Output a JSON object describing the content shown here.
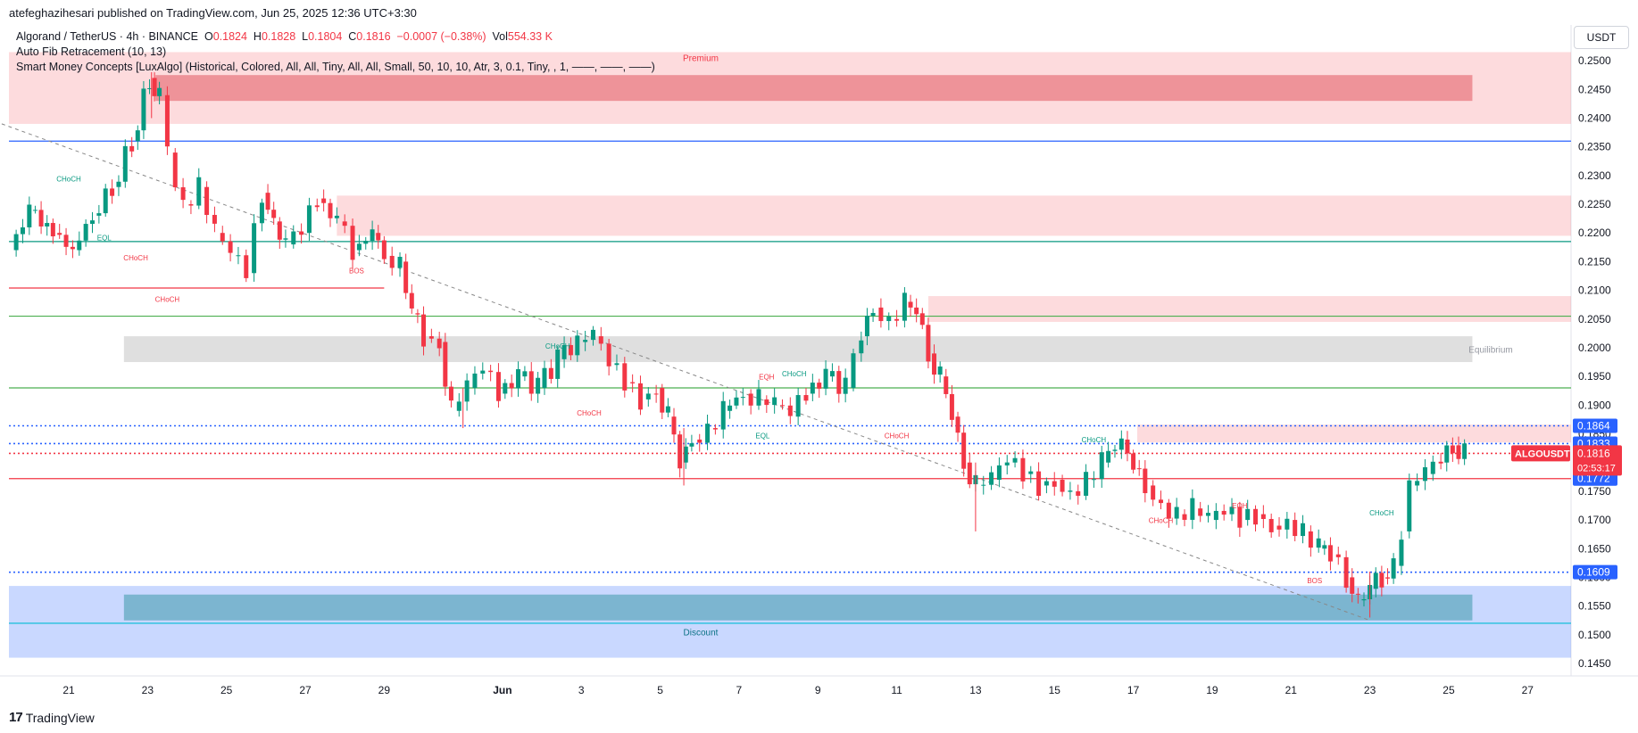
{
  "header": {
    "publish_text": "atefeghazihesari published on TradingView.com, Jun 25, 2025 12:36 UTC+3:30"
  },
  "legend": {
    "symbol": "Algorand / TetherUS · 4h · BINANCE",
    "o_label": "O",
    "o_value": "0.1824",
    "h_label": "H",
    "h_value": "0.1828",
    "l_label": "L",
    "l_value": "0.1804",
    "c_label": "C",
    "c_value": "0.1816",
    "change": "−0.0007 (−0.38%)",
    "vol_label": "Vol",
    "vol_value": "554.33 K",
    "indicator1": "Auto Fib Retracement (10, 13)",
    "indicator2": "Smart Money Concepts [LuxAlgo] (Historical, Colored, All, All, Tiny, All, All, Small, 50, 10, 10, Atr, 3, 0.1, Tiny, , 1, ——, ——, ——)"
  },
  "axis": {
    "currency": "USDT"
  },
  "footer": {
    "brand": "TradingView"
  },
  "colors": {
    "up": "#089981",
    "down": "#f23645",
    "blue": "#2962ff",
    "premium_zone": "#f7c1c5",
    "discount_zone": "#b2c4f2",
    "equilibrium_zone": "#d9d9d9"
  },
  "chart_data": {
    "type": "candlestick",
    "title": "Algorand / TetherUS · 4h · BINANCE",
    "ylim": [
      0.145,
      0.2525
    ],
    "y_ticks": [
      "0.2500",
      "0.2450",
      "0.2400",
      "0.2350",
      "0.2300",
      "0.2250",
      "0.2200",
      "0.2150",
      "0.2100",
      "0.2050",
      "0.2000",
      "0.1950",
      "0.1900",
      "0.1850",
      "0.1800",
      "0.1750",
      "0.1700",
      "0.1650",
      "0.1600",
      "0.1550",
      "0.1500",
      "0.1450"
    ],
    "x_ticks": [
      {
        "d": 21,
        "label": "21"
      },
      {
        "d": 23,
        "label": "23"
      },
      {
        "d": 25,
        "label": "25"
      },
      {
        "d": 27,
        "label": "27"
      },
      {
        "d": 29,
        "label": "29"
      },
      {
        "d": 32,
        "label": "Jun"
      },
      {
        "d": 34,
        "label": "3"
      },
      {
        "d": 36,
        "label": "5"
      },
      {
        "d": 38,
        "label": "7"
      },
      {
        "d": 40,
        "label": "9"
      },
      {
        "d": 42,
        "label": "11"
      },
      {
        "d": 44,
        "label": "13"
      },
      {
        "d": 46,
        "label": "15"
      },
      {
        "d": 48,
        "label": "17"
      },
      {
        "d": 50,
        "label": "19"
      },
      {
        "d": 52,
        "label": "21"
      },
      {
        "d": 54,
        "label": "23"
      },
      {
        "d": 56,
        "label": "25"
      },
      {
        "d": 58,
        "label": "27"
      }
    ],
    "price_path": [
      [
        19.5,
        0.217
      ],
      [
        20.0,
        0.224
      ],
      [
        20.6,
        0.22
      ],
      [
        21.1,
        0.217
      ],
      [
        21.6,
        0.223
      ],
      [
        22.1,
        0.228
      ],
      [
        22.6,
        0.236
      ],
      [
        23.05,
        0.247
      ],
      [
        23.3,
        0.244
      ],
      [
        23.5,
        0.234
      ],
      [
        23.9,
        0.225
      ],
      [
        24.3,
        0.228
      ],
      [
        24.7,
        0.22
      ],
      [
        25.1,
        0.216
      ],
      [
        25.5,
        0.213
      ],
      [
        25.9,
        0.227
      ],
      [
        26.2,
        0.222
      ],
      [
        26.5,
        0.218
      ],
      [
        26.9,
        0.22
      ],
      [
        27.3,
        0.226
      ],
      [
        27.8,
        0.222
      ],
      [
        28.2,
        0.217
      ],
      [
        28.7,
        0.22
      ],
      [
        29.0,
        0.216
      ],
      [
        29.4,
        0.215
      ],
      [
        29.7,
        0.206
      ],
      [
        30.0,
        0.202
      ],
      [
        30.4,
        0.201
      ],
      [
        30.7,
        0.189
      ],
      [
        31.1,
        0.193
      ],
      [
        31.5,
        0.196
      ],
      [
        31.9,
        0.192
      ],
      [
        32.4,
        0.195
      ],
      [
        32.9,
        0.193
      ],
      [
        33.4,
        0.198
      ],
      [
        33.9,
        0.201
      ],
      [
        34.3,
        0.202
      ],
      [
        34.7,
        0.197
      ],
      [
        35.1,
        0.194
      ],
      [
        35.5,
        0.191
      ],
      [
        35.9,
        0.193
      ],
      [
        36.2,
        0.188
      ],
      [
        36.5,
        0.18
      ],
      [
        36.8,
        0.184
      ],
      [
        37.2,
        0.186
      ],
      [
        37.6,
        0.189
      ],
      [
        38.1,
        0.192
      ],
      [
        38.5,
        0.191
      ],
      [
        38.9,
        0.19
      ],
      [
        39.3,
        0.188
      ],
      [
        39.7,
        0.192
      ],
      [
        40.2,
        0.195
      ],
      [
        40.7,
        0.193
      ],
      [
        41.1,
        0.202
      ],
      [
        41.4,
        0.207
      ],
      [
        41.8,
        0.205
      ],
      [
        42.2,
        0.208
      ],
      [
        42.5,
        0.206
      ],
      [
        42.8,
        0.199
      ],
      [
        43.1,
        0.195
      ],
      [
        43.4,
        0.188
      ],
      [
        43.7,
        0.18
      ],
      [
        44.0,
        0.176
      ],
      [
        44.4,
        0.177
      ],
      [
        44.8,
        0.18
      ],
      [
        45.2,
        0.178
      ],
      [
        45.6,
        0.176
      ],
      [
        46.0,
        0.177
      ],
      [
        46.4,
        0.175
      ],
      [
        46.8,
        0.177
      ],
      [
        47.2,
        0.18
      ],
      [
        47.7,
        0.184
      ],
      [
        48.0,
        0.179
      ],
      [
        48.3,
        0.176
      ],
      [
        48.7,
        0.173
      ],
      [
        49.1,
        0.171
      ],
      [
        49.5,
        0.172
      ],
      [
        49.9,
        0.17
      ],
      [
        50.3,
        0.171
      ],
      [
        50.7,
        0.17
      ],
      [
        51.1,
        0.171
      ],
      [
        51.5,
        0.169
      ],
      [
        51.9,
        0.17
      ],
      [
        52.3,
        0.168
      ],
      [
        52.7,
        0.165
      ],
      [
        53.0,
        0.164
      ],
      [
        53.4,
        0.16
      ],
      [
        53.7,
        0.156
      ],
      [
        54.0,
        0.158
      ],
      [
        54.3,
        0.16
      ],
      [
        54.6,
        0.162
      ],
      [
        54.8,
        0.168
      ],
      [
        55.0,
        0.176
      ],
      [
        55.4,
        0.178
      ],
      [
        55.8,
        0.18
      ],
      [
        56.1,
        0.183
      ],
      [
        56.4,
        0.1816
      ]
    ],
    "wicks": [
      [
        44.0,
        0.168,
        0.18
      ],
      [
        36.6,
        0.176,
        0.186
      ],
      [
        23.1,
        0.24,
        0.248
      ],
      [
        54.0,
        0.153,
        0.161
      ],
      [
        31.0,
        0.186,
        0.193
      ]
    ],
    "zones": [
      {
        "name": "Premium",
        "from_d": 19.3,
        "to_d": 59.6,
        "y1": 0.2515,
        "y2": 0.239,
        "kind": "premium"
      },
      {
        "name": "",
        "from_d": 23.2,
        "to_d": 56.6,
        "y1": 0.2475,
        "y2": 0.243,
        "kind": "premium_dark"
      },
      {
        "name": "",
        "from_d": 27.8,
        "to_d": 59.6,
        "y1": 0.2265,
        "y2": 0.2195,
        "kind": "premium"
      },
      {
        "name": "",
        "from_d": 42.8,
        "to_d": 59.6,
        "y1": 0.209,
        "y2": 0.2045,
        "kind": "premium"
      },
      {
        "name": "",
        "from_d": 48.1,
        "to_d": 59.6,
        "y1": 0.1866,
        "y2": 0.1835,
        "kind": "premium"
      },
      {
        "name": "Equilibrium",
        "from_d": 22.4,
        "to_d": 56.6,
        "y1": 0.202,
        "y2": 0.1975,
        "kind": "equilibrium"
      },
      {
        "name": "Discount",
        "from_d": 19.3,
        "to_d": 59.6,
        "y1": 0.1585,
        "y2": 0.146,
        "kind": "discount"
      },
      {
        "name": "",
        "from_d": 22.4,
        "to_d": 56.6,
        "y1": 0.157,
        "y2": 0.1525,
        "kind": "discount_dark"
      }
    ],
    "levels": [
      {
        "price": 0.236,
        "color": "#2962ff",
        "style": "solid"
      },
      {
        "price": 0.2185,
        "color": "#089981",
        "style": "solid"
      },
      {
        "price": 0.2055,
        "color": "#4caf50",
        "style": "solid"
      },
      {
        "price": 0.193,
        "color": "#4caf50",
        "style": "solid"
      },
      {
        "price": 0.2104,
        "color": "#f23645",
        "style": "solid",
        "from_d": 19.3,
        "to_d": 29.0
      },
      {
        "price": 0.1864,
        "color": "#2962ff",
        "style": "dotted"
      },
      {
        "price": 0.1833,
        "color": "#2962ff",
        "style": "dotted"
      },
      {
        "price": 0.1816,
        "color": "#f23645",
        "style": "dotted"
      },
      {
        "price": 0.1772,
        "color": "#f23645",
        "style": "solid"
      },
      {
        "price": 0.1609,
        "color": "#2962ff",
        "style": "dotted"
      },
      {
        "price": 0.152,
        "color": "#00bcd4",
        "style": "solid"
      }
    ],
    "trendline": [
      [
        19.3,
        0.239
      ],
      [
        54.0,
        0.1525
      ]
    ],
    "price_labels": [
      {
        "price": 0.1864,
        "text": "0.1864",
        "bg": "#2962ff"
      },
      {
        "price": 0.1833,
        "text": "0.1833",
        "bg": "#2962ff"
      },
      {
        "price": 0.1772,
        "text": "0.1772",
        "bg": "#2962ff"
      },
      {
        "price": 0.1609,
        "text": "0.1609",
        "bg": "#2962ff"
      }
    ],
    "last_price": {
      "symbol": "ALGOUSDT",
      "price": "0.1816",
      "countdown": "02:53:17"
    },
    "annotations": [
      {
        "d": 21.0,
        "p": 0.229,
        "text": "CHoCH",
        "color": "#089981"
      },
      {
        "d": 21.9,
        "p": 0.2187,
        "text": "EQL",
        "color": "#089981"
      },
      {
        "d": 22.7,
        "p": 0.2152,
        "text": "CHoCH",
        "color": "#f23645"
      },
      {
        "d": 28.3,
        "p": 0.213,
        "text": "BOS",
        "color": "#f23645"
      },
      {
        "d": 23.5,
        "p": 0.208,
        "text": "CHoCH",
        "color": "#f23645"
      },
      {
        "d": 33.4,
        "p": 0.1998,
        "text": "CHoCH",
        "color": "#089981"
      },
      {
        "d": 34.2,
        "p": 0.1882,
        "text": "CHoCH",
        "color": "#f23645"
      },
      {
        "d": 38.7,
        "p": 0.1945,
        "text": "EQH",
        "color": "#f23645"
      },
      {
        "d": 39.4,
        "p": 0.195,
        "text": "CHoCH",
        "color": "#089981"
      },
      {
        "d": 38.6,
        "p": 0.1842,
        "text": "EQL",
        "color": "#089981"
      },
      {
        "d": 42.0,
        "p": 0.1842,
        "text": "CHoCH",
        "color": "#f23645"
      },
      {
        "d": 47.0,
        "p": 0.1835,
        "text": "CHoCH",
        "color": "#089981"
      },
      {
        "d": 48.7,
        "p": 0.1695,
        "text": "CHoCH",
        "color": "#f23645"
      },
      {
        "d": 50.7,
        "p": 0.172,
        "text": "EQH",
        "color": "#f23645"
      },
      {
        "d": 54.3,
        "p": 0.1708,
        "text": "CHoCH",
        "color": "#089981"
      },
      {
        "d": 52.6,
        "p": 0.159,
        "text": "BOS",
        "color": "#f23645"
      }
    ]
  }
}
